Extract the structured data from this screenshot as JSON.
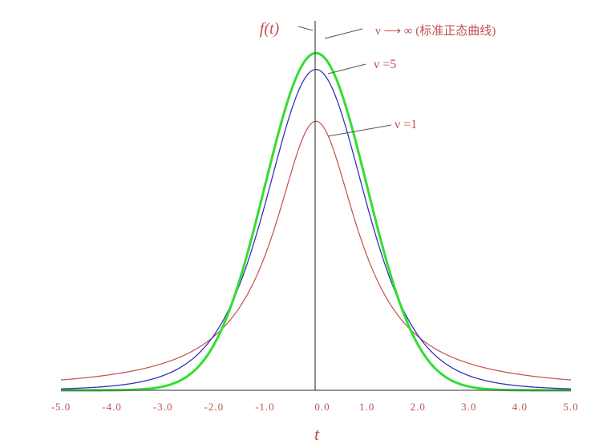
{
  "chart_data": {
    "type": "line",
    "title": "",
    "xlabel": "t",
    "ylabel": "f(t)",
    "xlim": [
      -5.0,
      5.0
    ],
    "ylim": [
      0,
      0.42
    ],
    "grid": false,
    "x_tick_labels": [
      "-5.0",
      "-4.0",
      "-3.0",
      "-2.0",
      "-1.0",
      "0.0",
      "1.0",
      "2.0",
      "3.0",
      "4.0",
      "5.0"
    ],
    "series": [
      {
        "name": "ν ⟶ ∞ (标准正态曲线)",
        "df": "inf",
        "color": "#33dd33",
        "stroke_width": 3,
        "x": [
          -5,
          -4,
          -3,
          -2.5,
          -2,
          -1.5,
          -1,
          -0.5,
          0,
          0.5,
          1,
          1.5,
          2,
          2.5,
          3,
          4,
          5
        ],
        "values": [
          1.5e-06,
          0.00013,
          0.0044,
          0.0175,
          0.054,
          0.1295,
          0.242,
          0.352,
          0.3989,
          0.352,
          0.242,
          0.1295,
          0.054,
          0.0175,
          0.0044,
          0.00013,
          1.5e-06
        ]
      },
      {
        "name": "ν =5",
        "df": 5,
        "color": "#3333bb",
        "stroke_width": 1.3,
        "x": [
          -5,
          -4,
          -3,
          -2.5,
          -2,
          -1.5,
          -1,
          -0.5,
          0,
          0.5,
          1,
          1.5,
          2,
          2.5,
          3,
          4,
          5
        ],
        "values": [
          0.0018,
          0.0051,
          0.0173,
          0.0329,
          0.0651,
          0.1245,
          0.2197,
          0.3279,
          0.3796,
          0.3279,
          0.2197,
          0.1245,
          0.0651,
          0.0329,
          0.0173,
          0.0051,
          0.0018
        ]
      },
      {
        "name": "ν =1",
        "df": 1,
        "color": "#c0504d",
        "stroke_width": 1.2,
        "x": [
          -5,
          -4,
          -3,
          -2.5,
          -2,
          -1.5,
          -1,
          -0.5,
          0,
          0.5,
          1,
          1.5,
          2,
          2.5,
          3,
          4,
          5
        ],
        "values": [
          0.0122,
          0.0187,
          0.0318,
          0.0439,
          0.0637,
          0.0979,
          0.1592,
          0.2546,
          0.3183,
          0.2546,
          0.1592,
          0.0979,
          0.0637,
          0.0439,
          0.0318,
          0.0187,
          0.0122
        ]
      }
    ],
    "annotations": [
      {
        "text": "ν ⟶ ∞ (标准正态曲线)",
        "target_series": 0
      },
      {
        "text": "ν =5",
        "target_series": 1
      },
      {
        "text": "ν =1",
        "target_series": 2
      }
    ]
  },
  "colors": {
    "label_red": "#c0504d",
    "axis_gray": "#555555"
  }
}
